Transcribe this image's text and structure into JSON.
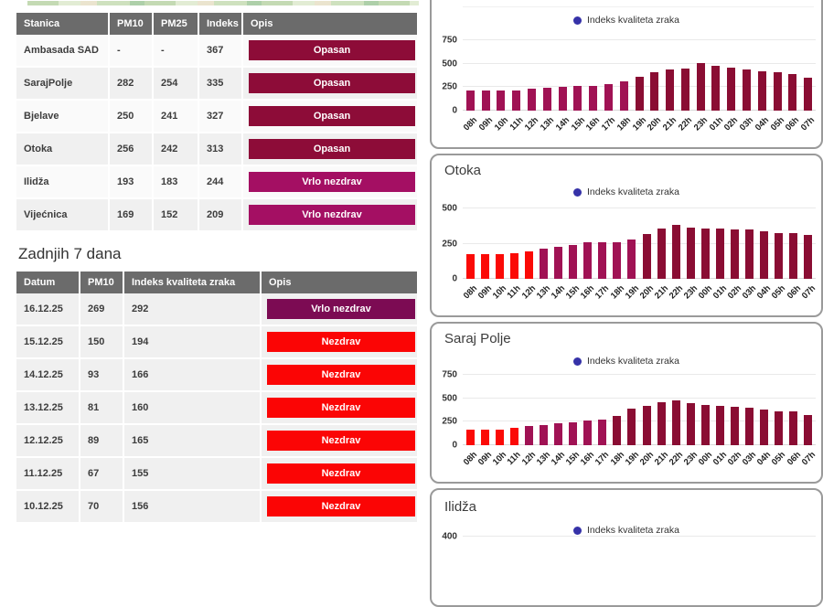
{
  "colors": {
    "opasan": "#8d0c38",
    "vrlo_nezdrav": "#a40f63",
    "vrlo_nezdrav_dark": "#7c0b53",
    "nezdrav": "#fb0505",
    "bar_red": "#fb0a06",
    "bar_magenta": "#a01254",
    "bar_maroon": "#8a0d33",
    "legend_dot": "#3632a8",
    "table_header_bg": "#6b6b6b"
  },
  "stations_table": {
    "headers": [
      "Stanica",
      "PM10",
      "PM25",
      "Indeks",
      "Opis"
    ],
    "rows": [
      {
        "stanica": "Ambasada SAD",
        "pm10": "-",
        "pm25": "-",
        "indeks": "367",
        "opis": "Opasan",
        "level": "opasan"
      },
      {
        "stanica": "SarajPolje",
        "pm10": "282",
        "pm25": "254",
        "indeks": "335",
        "opis": "Opasan",
        "level": "opasan"
      },
      {
        "stanica": "Bjelave",
        "pm10": "250",
        "pm25": "241",
        "indeks": "327",
        "opis": "Opasan",
        "level": "opasan"
      },
      {
        "stanica": "Otoka",
        "pm10": "256",
        "pm25": "242",
        "indeks": "313",
        "opis": "Opasan",
        "level": "opasan"
      },
      {
        "stanica": "Ilidža",
        "pm10": "193",
        "pm25": "183",
        "indeks": "244",
        "opis": "Vrlo nezdrav",
        "level": "vrlo_nezdrav"
      },
      {
        "stanica": "Vijećnica",
        "pm10": "169",
        "pm25": "152",
        "indeks": "209",
        "opis": "Vrlo nezdrav",
        "level": "vrlo_nezdrav"
      }
    ]
  },
  "last7_section": {
    "title": "Zadnjih 7 dana",
    "headers": [
      "Datum",
      "PM10",
      "Indeks kvaliteta zraka",
      "Opis"
    ],
    "rows": [
      {
        "datum": "16.12.25",
        "pm10": "269",
        "indeks": "292",
        "opis": "Vrlo nezdrav",
        "level": "vrlo_nezdrav_dark"
      },
      {
        "datum": "15.12.25",
        "pm10": "150",
        "indeks": "194",
        "opis": "Nezdrav",
        "level": "nezdrav"
      },
      {
        "datum": "14.12.25",
        "pm10": "93",
        "indeks": "166",
        "opis": "Nezdrav",
        "level": "nezdrav"
      },
      {
        "datum": "13.12.25",
        "pm10": "81",
        "indeks": "160",
        "opis": "Nezdrav",
        "level": "nezdrav"
      },
      {
        "datum": "12.12.25",
        "pm10": "89",
        "indeks": "165",
        "opis": "Nezdrav",
        "level": "nezdrav"
      },
      {
        "datum": "11.12.25",
        "pm10": "67",
        "indeks": "155",
        "opis": "Nezdrav",
        "level": "nezdrav"
      },
      {
        "datum": "10.12.25",
        "pm10": "70",
        "indeks": "156",
        "opis": "Nezdrav",
        "level": "nezdrav"
      }
    ]
  },
  "chart_data": [
    {
      "type": "bar",
      "title": "",
      "legend": "Indeks kvaliteta zraka",
      "categories": [
        "08h",
        "09h",
        "10h",
        "11h",
        "12h",
        "13h",
        "14h",
        "15h",
        "16h",
        "17h",
        "18h",
        "19h",
        "20h",
        "21h",
        "22h",
        "23h",
        "01h",
        "02h",
        "03h",
        "04h",
        "05h",
        "06h",
        "07h"
      ],
      "values": [
        210,
        210,
        215,
        212,
        235,
        243,
        252,
        265,
        265,
        285,
        310,
        365,
        410,
        437,
        452,
        505,
        475,
        455,
        440,
        420,
        410,
        385,
        355
      ],
      "levels": [
        "magenta",
        "magenta",
        "magenta",
        "magenta",
        "magenta",
        "magenta",
        "magenta",
        "magenta",
        "magenta",
        "magenta",
        "magenta",
        "maroon",
        "maroon",
        "maroon",
        "maroon",
        "maroon",
        "maroon",
        "maroon",
        "maroon",
        "maroon",
        "maroon",
        "maroon",
        "maroon"
      ],
      "yticks": [
        750,
        500,
        250,
        0
      ],
      "ylim": [
        0,
        750
      ],
      "grid": true,
      "legend_position": "top"
    },
    {
      "type": "bar",
      "title": "Otoka",
      "legend": "Indeks kvaliteta zraka",
      "categories": [
        "08h",
        "09h",
        "10h",
        "11h",
        "12h",
        "13h",
        "14h",
        "15h",
        "16h",
        "17h",
        "18h",
        "19h",
        "20h",
        "21h",
        "22h",
        "23h",
        "00h",
        "01h",
        "02h",
        "03h",
        "04h",
        "05h",
        "06h",
        "07h"
      ],
      "values": [
        175,
        175,
        178,
        183,
        192,
        215,
        226,
        243,
        258,
        257,
        262,
        278,
        315,
        360,
        380,
        363,
        357,
        358,
        352,
        350,
        338,
        325,
        325,
        310
      ],
      "levels": [
        "red",
        "red",
        "red",
        "red",
        "red",
        "magenta",
        "magenta",
        "magenta",
        "magenta",
        "magenta",
        "magenta",
        "magenta",
        "maroon",
        "maroon",
        "maroon",
        "maroon",
        "maroon",
        "maroon",
        "maroon",
        "maroon",
        "maroon",
        "maroon",
        "maroon",
        "maroon"
      ],
      "yticks": [
        500,
        250,
        0
      ],
      "ylim": [
        0,
        500
      ],
      "grid": true,
      "legend_position": "top"
    },
    {
      "type": "bar",
      "title": "Saraj Polje",
      "legend": "Indeks kvaliteta zraka",
      "categories": [
        "08h",
        "09h",
        "10h",
        "11h",
        "12h",
        "13h",
        "14h",
        "15h",
        "16h",
        "17h",
        "18h",
        "19h",
        "20h",
        "21h",
        "22h",
        "23h",
        "00h",
        "01h",
        "02h",
        "03h",
        "04h",
        "05h",
        "06h",
        "07h"
      ],
      "values": [
        170,
        170,
        170,
        185,
        200,
        212,
        230,
        245,
        260,
        270,
        310,
        385,
        415,
        455,
        480,
        450,
        430,
        415,
        405,
        400,
        380,
        360,
        365,
        325
      ],
      "levels": [
        "red",
        "red",
        "red",
        "red",
        "magenta",
        "magenta",
        "magenta",
        "magenta",
        "magenta",
        "magenta",
        "maroon",
        "maroon",
        "maroon",
        "maroon",
        "maroon",
        "maroon",
        "maroon",
        "maroon",
        "maroon",
        "maroon",
        "maroon",
        "maroon",
        "maroon",
        "maroon"
      ],
      "yticks": [
        750,
        500,
        250,
        0
      ],
      "ylim": [
        0,
        750
      ],
      "grid": true,
      "legend_position": "top"
    },
    {
      "type": "bar",
      "title": "Ilidža",
      "legend": "Indeks kvaliteta zraka",
      "categories": [],
      "values": [],
      "levels": [],
      "yticks": [
        400
      ],
      "ylim": [
        0,
        400
      ],
      "grid": true,
      "legend_position": "top"
    }
  ]
}
